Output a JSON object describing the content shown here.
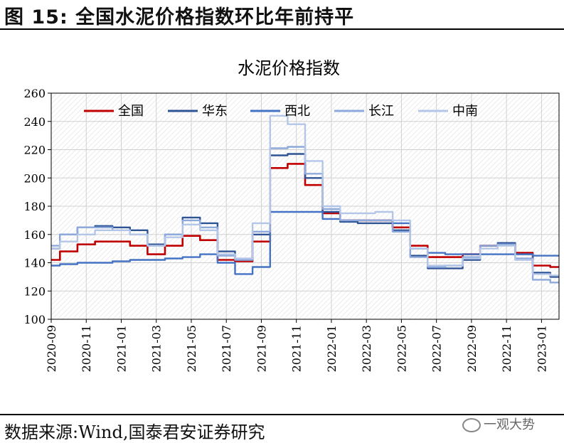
{
  "figure_title": "图 15:  全国水泥价格指数环比年前持平",
  "source_note": "数据来源:Wind,国泰君安证券研究",
  "watermark": "一观大势",
  "watermark_icon": "wechat-icon",
  "chart_data": {
    "type": "line",
    "title": "水泥价格指数",
    "xlabel": "",
    "ylabel": "",
    "ylim": [
      100,
      260
    ],
    "yticks": [
      100,
      120,
      140,
      160,
      180,
      200,
      220,
      240,
      260
    ],
    "xlim": [
      "2020-09",
      "2023-02"
    ],
    "xticks": [
      "2020-09",
      "2020-11",
      "2021-01",
      "2021-03",
      "2021-05",
      "2021-07",
      "2021-09",
      "2021-11",
      "2022-01",
      "2022-03",
      "2022-05",
      "2022-07",
      "2022-09",
      "2022-11",
      "2023-01"
    ],
    "grid": true,
    "background": "hatched",
    "legend_position": "top",
    "series": [
      {
        "name": "全国",
        "color": "#c00000",
        "points": [
          [
            "2020-09",
            142
          ],
          [
            "2020-10",
            148
          ],
          [
            "2020-11",
            153
          ],
          [
            "2020-12",
            155
          ],
          [
            "2021-01",
            155
          ],
          [
            "2021-02",
            152
          ],
          [
            "2021-03",
            146
          ],
          [
            "2021-04",
            152
          ],
          [
            "2021-05",
            159
          ],
          [
            "2021-06",
            156
          ],
          [
            "2021-07",
            142
          ],
          [
            "2021-08",
            141
          ],
          [
            "2021-09",
            155
          ],
          [
            "2021-10",
            207
          ],
          [
            "2021-11",
            210
          ],
          [
            "2021-12",
            195
          ],
          [
            "2022-01",
            175
          ],
          [
            "2022-02",
            170
          ],
          [
            "2022-03",
            170
          ],
          [
            "2022-04",
            170
          ],
          [
            "2022-05",
            165
          ],
          [
            "2022-06",
            152
          ],
          [
            "2022-07",
            144
          ],
          [
            "2022-08",
            144
          ],
          [
            "2022-09",
            146
          ],
          [
            "2022-10",
            152
          ],
          [
            "2022-11",
            153
          ],
          [
            "2022-12",
            147
          ],
          [
            "2023-01",
            138
          ],
          [
            "2023-02",
            137
          ]
        ]
      },
      {
        "name": "华东",
        "color": "#2f5496",
        "points": [
          [
            "2020-09",
            150
          ],
          [
            "2020-10",
            160
          ],
          [
            "2020-11",
            165
          ],
          [
            "2020-12",
            166
          ],
          [
            "2021-01",
            165
          ],
          [
            "2021-02",
            163
          ],
          [
            "2021-03",
            153
          ],
          [
            "2021-04",
            160
          ],
          [
            "2021-05",
            172
          ],
          [
            "2021-06",
            168
          ],
          [
            "2021-07",
            148
          ],
          [
            "2021-08",
            142
          ],
          [
            "2021-09",
            160
          ],
          [
            "2021-10",
            216
          ],
          [
            "2021-11",
            217
          ],
          [
            "2021-12",
            200
          ],
          [
            "2022-01",
            176
          ],
          [
            "2022-02",
            169
          ],
          [
            "2022-03",
            168
          ],
          [
            "2022-04",
            168
          ],
          [
            "2022-05",
            163
          ],
          [
            "2022-06",
            145
          ],
          [
            "2022-07",
            136
          ],
          [
            "2022-08",
            136
          ],
          [
            "2022-09",
            142
          ],
          [
            "2022-10",
            152
          ],
          [
            "2022-11",
            154
          ],
          [
            "2022-12",
            146
          ],
          [
            "2023-01",
            133
          ],
          [
            "2023-02",
            130
          ]
        ]
      },
      {
        "name": "西北",
        "color": "#4472c4",
        "points": [
          [
            "2020-09",
            138
          ],
          [
            "2020-10",
            139
          ],
          [
            "2020-11",
            140
          ],
          [
            "2020-12",
            140
          ],
          [
            "2021-01",
            141
          ],
          [
            "2021-02",
            142
          ],
          [
            "2021-03",
            142
          ],
          [
            "2021-04",
            143
          ],
          [
            "2021-05",
            144
          ],
          [
            "2021-06",
            146
          ],
          [
            "2021-07",
            140
          ],
          [
            "2021-08",
            132
          ],
          [
            "2021-09",
            137
          ],
          [
            "2021-10",
            176
          ],
          [
            "2021-11",
            176
          ],
          [
            "2021-12",
            176
          ],
          [
            "2022-01",
            171
          ],
          [
            "2022-02",
            170
          ],
          [
            "2022-03",
            170
          ],
          [
            "2022-04",
            170
          ],
          [
            "2022-05",
            168
          ],
          [
            "2022-06",
            150
          ],
          [
            "2022-07",
            147
          ],
          [
            "2022-08",
            146
          ],
          [
            "2022-09",
            146
          ],
          [
            "2022-10",
            146
          ],
          [
            "2022-11",
            146
          ],
          [
            "2022-12",
            146
          ],
          [
            "2023-01",
            145
          ],
          [
            "2023-02",
            145
          ]
        ]
      },
      {
        "name": "长江",
        "color": "#8ea9db",
        "points": [
          [
            "2020-09",
            152
          ],
          [
            "2020-10",
            160
          ],
          [
            "2020-11",
            165
          ],
          [
            "2020-12",
            165
          ],
          [
            "2021-01",
            163
          ],
          [
            "2021-02",
            160
          ],
          [
            "2021-03",
            152
          ],
          [
            "2021-04",
            160
          ],
          [
            "2021-05",
            170
          ],
          [
            "2021-06",
            165
          ],
          [
            "2021-07",
            145
          ],
          [
            "2021-08",
            142
          ],
          [
            "2021-09",
            162
          ],
          [
            "2021-10",
            221
          ],
          [
            "2021-11",
            222
          ],
          [
            "2021-12",
            203
          ],
          [
            "2022-01",
            178
          ],
          [
            "2022-02",
            170
          ],
          [
            "2022-03",
            170
          ],
          [
            "2022-04",
            170
          ],
          [
            "2022-05",
            162
          ],
          [
            "2022-06",
            144
          ],
          [
            "2022-07",
            137
          ],
          [
            "2022-08",
            138
          ],
          [
            "2022-09",
            144
          ],
          [
            "2022-10",
            152
          ],
          [
            "2022-11",
            153
          ],
          [
            "2022-12",
            143
          ],
          [
            "2023-01",
            128
          ],
          [
            "2023-02",
            126
          ]
        ]
      },
      {
        "name": "中南",
        "color": "#b4c6e7",
        "points": [
          [
            "2020-09",
            150
          ],
          [
            "2020-10",
            155
          ],
          [
            "2020-11",
            160
          ],
          [
            "2020-12",
            163
          ],
          [
            "2021-01",
            163
          ],
          [
            "2021-02",
            160
          ],
          [
            "2021-03",
            152
          ],
          [
            "2021-04",
            158
          ],
          [
            "2021-05",
            167
          ],
          [
            "2021-06",
            163
          ],
          [
            "2021-07",
            146
          ],
          [
            "2021-08",
            143
          ],
          [
            "2021-09",
            168
          ],
          [
            "2021-10",
            244
          ],
          [
            "2021-11",
            238
          ],
          [
            "2021-12",
            212
          ],
          [
            "2022-01",
            180
          ],
          [
            "2022-02",
            175
          ],
          [
            "2022-03",
            175
          ],
          [
            "2022-04",
            176
          ],
          [
            "2022-05",
            170
          ],
          [
            "2022-06",
            150
          ],
          [
            "2022-07",
            138
          ],
          [
            "2022-08",
            138
          ],
          [
            "2022-09",
            143
          ],
          [
            "2022-10",
            150
          ],
          [
            "2022-11",
            152
          ],
          [
            "2022-12",
            142
          ],
          [
            "2023-01",
            132
          ],
          [
            "2023-02",
            131
          ]
        ]
      }
    ]
  }
}
